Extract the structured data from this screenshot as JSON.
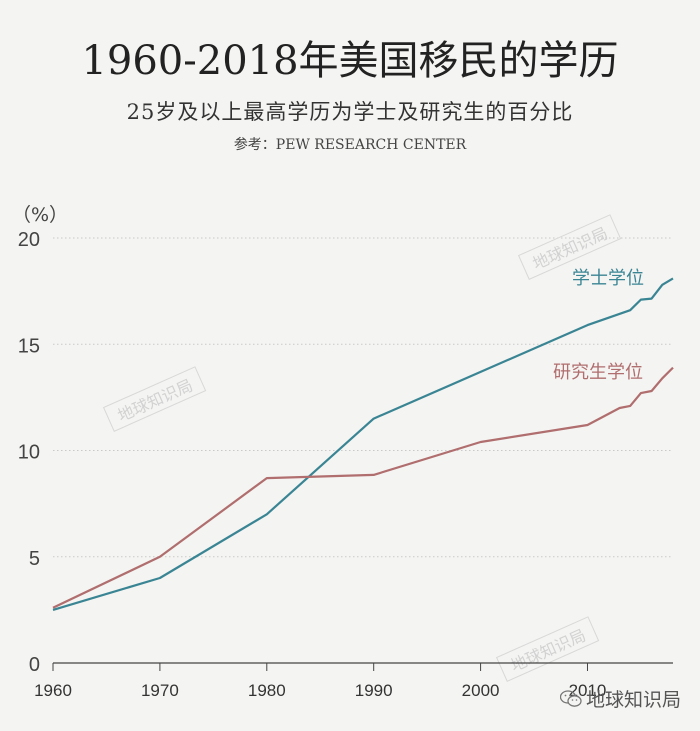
{
  "title": "1960-2018年美国移民的学历",
  "subtitle": "25岁及以上最高学历为学士及研究生的百分比",
  "source": "参考：PEW RESEARCH CENTER",
  "watermark_text": "地球知识局",
  "brand": {
    "name": "地球知识局",
    "icon": "wechat-icon"
  },
  "chart_data": {
    "type": "line",
    "ylabel": "（%）",
    "xlim": [
      1960,
      2018
    ],
    "ylim": [
      0,
      20
    ],
    "x_ticks": [
      1960,
      1970,
      1980,
      1990,
      2000,
      2010
    ],
    "y_ticks": [
      0,
      5,
      10,
      15,
      20
    ],
    "grid": "horizontal-dotted",
    "series": [
      {
        "name": "学士学位",
        "color": "#3a8594",
        "points": [
          [
            1960,
            2.5
          ],
          [
            1970,
            4.0
          ],
          [
            1980,
            7.0
          ],
          [
            1990,
            11.5
          ],
          [
            2000,
            13.7
          ],
          [
            2010,
            15.9
          ],
          [
            2014,
            16.6
          ],
          [
            2015,
            17.1
          ],
          [
            2016,
            17.15
          ],
          [
            2017,
            17.8
          ],
          [
            2018,
            18.1
          ]
        ]
      },
      {
        "name": "研究生学位",
        "color": "#b06e6e",
        "points": [
          [
            1960,
            2.6
          ],
          [
            1970,
            5.0
          ],
          [
            1980,
            8.7
          ],
          [
            1990,
            8.85
          ],
          [
            2000,
            10.4
          ],
          [
            2010,
            11.2
          ],
          [
            2013,
            12.0
          ],
          [
            2014,
            12.1
          ],
          [
            2015,
            12.7
          ],
          [
            2016,
            12.8
          ],
          [
            2017,
            13.4
          ],
          [
            2018,
            13.9
          ]
        ]
      }
    ]
  }
}
